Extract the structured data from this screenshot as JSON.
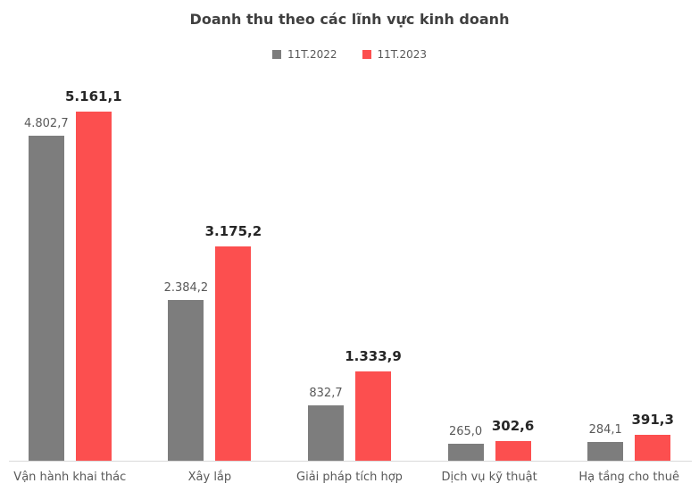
{
  "chart_data": {
    "type": "bar",
    "title": "Doanh thu theo các lĩnh vực kinh doanh",
    "categories": [
      "Vận hành khai thác",
      "Xây lắp",
      "Giải pháp tích hợp",
      "Dịch vụ kỹ thuật",
      "Hạ tầng cho thuê"
    ],
    "series": [
      {
        "name": "11T.2022",
        "color": "#7D7D7D",
        "values": [
          4802.7,
          2384.2,
          832.7,
          265.0,
          284.1
        ],
        "labels": [
          "4.802,7",
          "2.384,2",
          "832,7",
          "265,0",
          "284,1"
        ]
      },
      {
        "name": "11T.2023",
        "color": "#FC4F4F",
        "values": [
          5161.1,
          3175.2,
          1333.9,
          302.6,
          391.3
        ],
        "labels": [
          "5.161,1",
          "3.175,2",
          "1.333,9",
          "302,6",
          "391,3"
        ]
      }
    ],
    "xlabel": "",
    "ylabel": "",
    "ylim": [
      0,
      5161.1
    ],
    "grid": false,
    "legend_position": "top",
    "value_labels_shown": true
  },
  "colors": {
    "background": "#FFFFFF",
    "title_text": "#404040",
    "legend_text": "#595959",
    "axis_line": "#D9D9D9",
    "category_label_text": "#595959",
    "value_label_2022": "#595959",
    "value_label_2023": "#262626",
    "bar_2022": "#7D7D7D",
    "bar_2023": "#FC4F4F"
  }
}
